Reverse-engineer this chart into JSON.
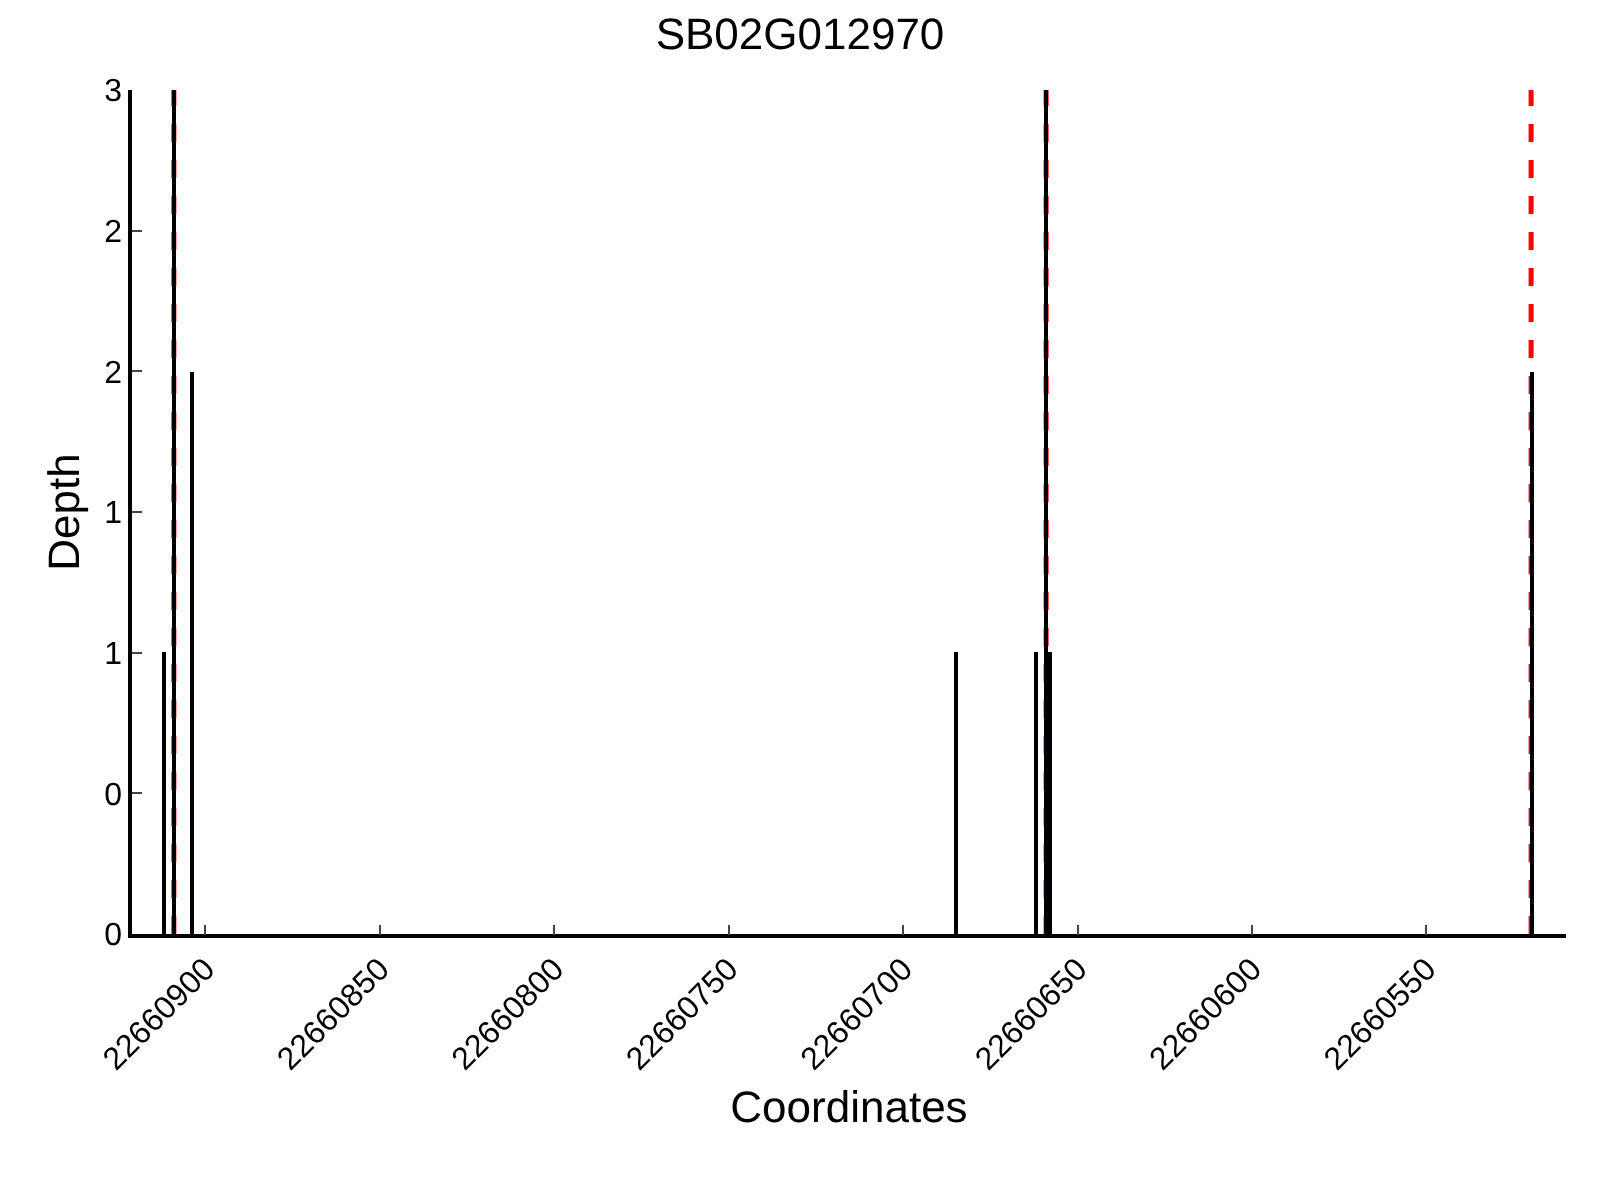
{
  "chart_data": {
    "type": "bar",
    "title": "SB02G012970",
    "xlabel": "Coordinates",
    "ylabel": "Depth",
    "x": [
      22660912,
      22660909,
      22660904,
      22660685,
      22660662,
      22660659,
      22660658,
      22660520
    ],
    "values": [
      1,
      3,
      2,
      1,
      1,
      3,
      1,
      2
    ],
    "color": "#000000",
    "xlim": [
      22660921,
      22660510
    ],
    "xticks": [
      22660900,
      22660850,
      22660800,
      22660750,
      22660700,
      22660650,
      22660600,
      22660550
    ],
    "ylim": [
      0,
      3
    ],
    "yticks": [
      0,
      {
        "value": 0.5,
        "label": "0"
      },
      1,
      {
        "value": 1.5,
        "label": "1"
      },
      2,
      {
        "value": 2.5,
        "label": "2"
      },
      3
    ],
    "ref_lines": [
      {
        "axis": "x",
        "value": 22660909,
        "label": null,
        "color": "#ff0000",
        "line_style": "dashed"
      },
      {
        "axis": "x",
        "value": 22660659,
        "label": null,
        "color": "#ff0000",
        "line_style": "dashed"
      },
      {
        "axis": "x",
        "value": 22660520,
        "label": null,
        "color": "#ff0000",
        "line_style": "dashed"
      }
    ],
    "grid": false
  }
}
